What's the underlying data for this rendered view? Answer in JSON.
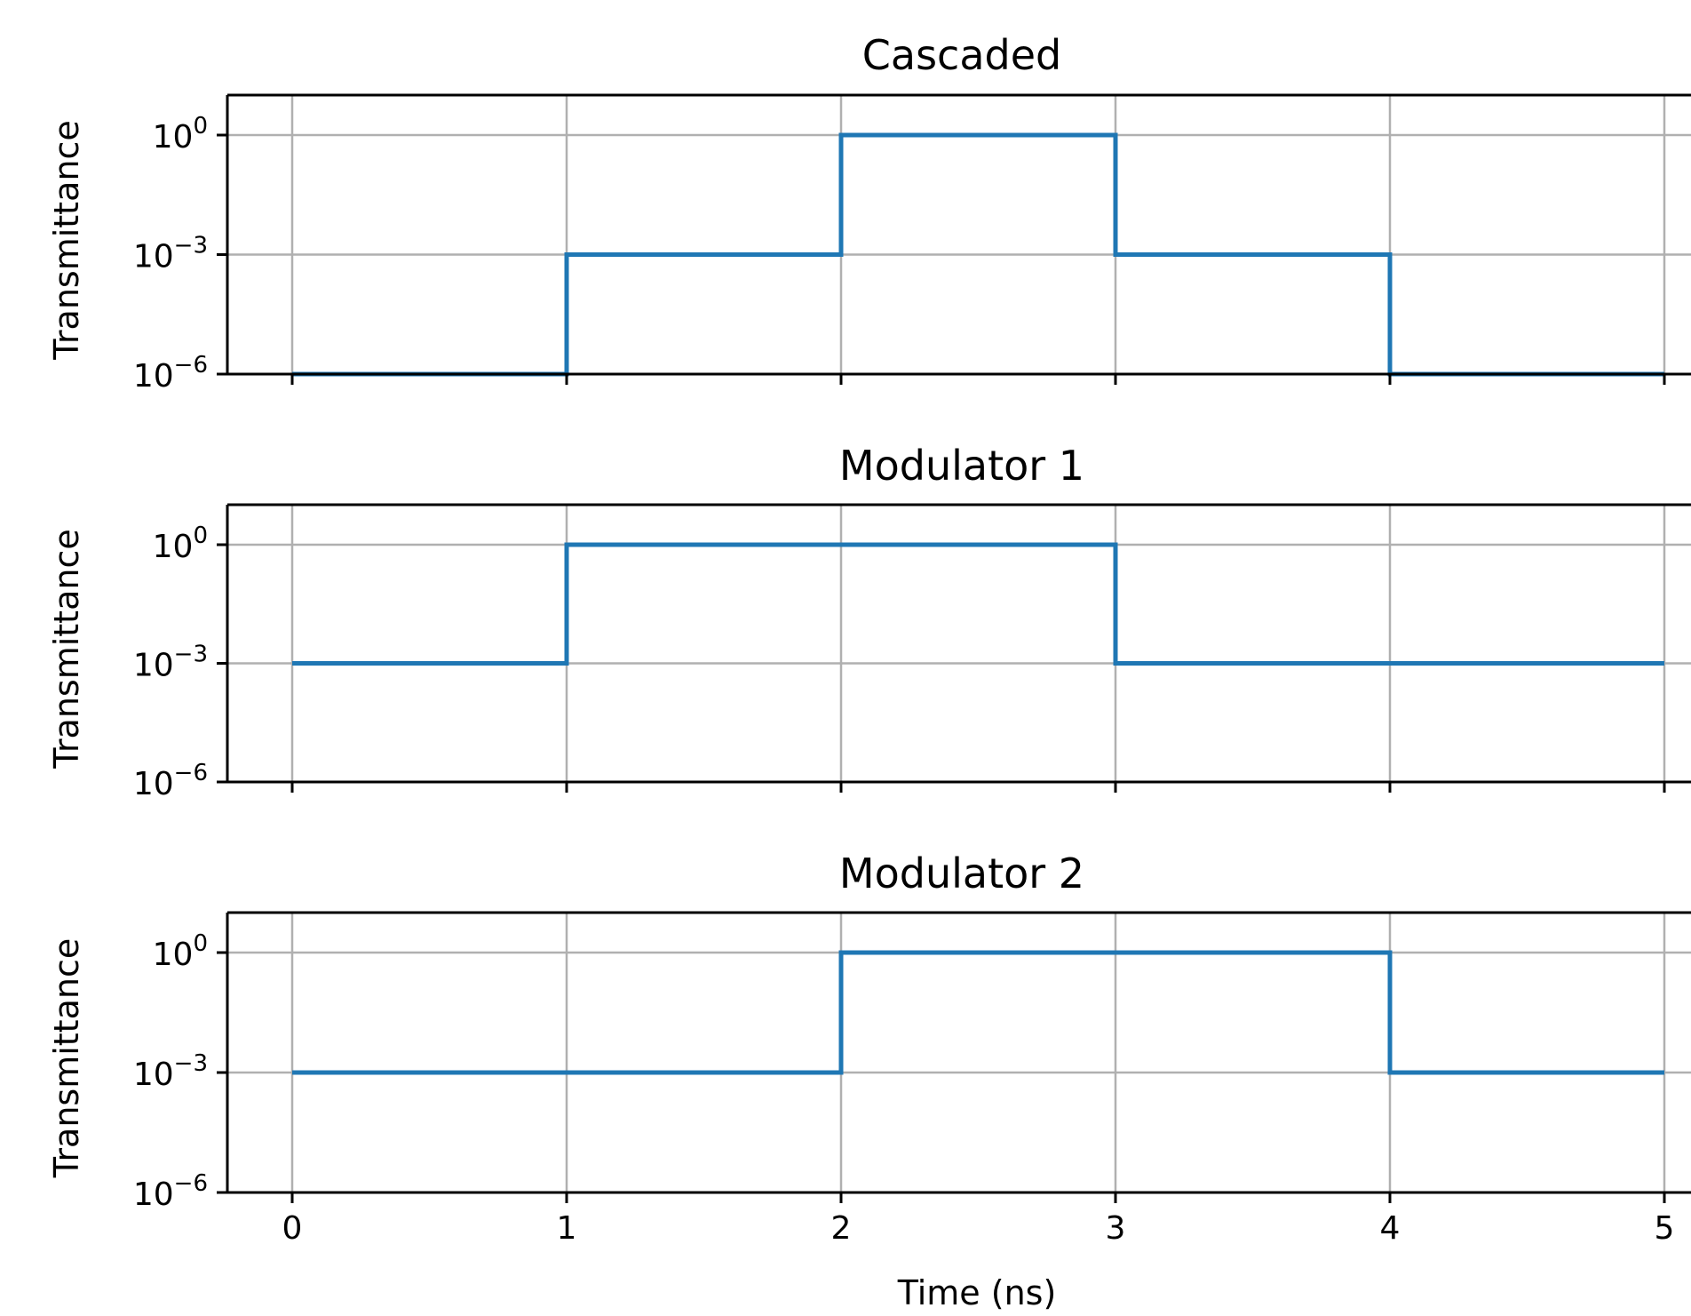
{
  "chart_data": [
    {
      "type": "line",
      "title": "Cascaded",
      "ylabel": "Transmittance",
      "xlabel": "",
      "yscale": "log",
      "xlim": [
        -0.25,
        5.1
      ],
      "ylim": [
        1e-06,
        10
      ],
      "grid": true,
      "xticks": [
        0,
        1,
        2,
        3,
        4,
        5
      ],
      "xtick_labels_visible": false,
      "yticks": [
        {
          "base": "10",
          "exp": "0",
          "value": 1
        },
        {
          "base": "10",
          "exp": "−3",
          "value": 0.001
        },
        {
          "base": "10",
          "exp": "−6",
          "value": 1e-06
        }
      ],
      "series": [
        {
          "color": "#1f77b4",
          "x": [
            0,
            1,
            1,
            2,
            2,
            3,
            3,
            4,
            4,
            5
          ],
          "y": [
            1e-06,
            1e-06,
            0.001,
            0.001,
            1,
            1,
            0.001,
            0.001,
            1e-06,
            1e-06
          ]
        }
      ]
    },
    {
      "type": "line",
      "title": "Modulator 1",
      "ylabel": "Transmittance",
      "xlabel": "",
      "yscale": "log",
      "xlim": [
        -0.25,
        5.1
      ],
      "ylim": [
        1e-06,
        10
      ],
      "grid": true,
      "xticks": [
        0,
        1,
        2,
        3,
        4,
        5
      ],
      "xtick_labels_visible": false,
      "yticks": [
        {
          "base": "10",
          "exp": "0",
          "value": 1
        },
        {
          "base": "10",
          "exp": "−3",
          "value": 0.001
        },
        {
          "base": "10",
          "exp": "−6",
          "value": 1e-06
        }
      ],
      "series": [
        {
          "color": "#1f77b4",
          "x": [
            0,
            1,
            1,
            3,
            3,
            5
          ],
          "y": [
            0.001,
            0.001,
            1,
            1,
            0.001,
            0.001
          ]
        }
      ]
    },
    {
      "type": "line",
      "title": "Modulator 2",
      "ylabel": "Transmittance",
      "xlabel": "Time (ns)",
      "yscale": "log",
      "xlim": [
        -0.25,
        5.1
      ],
      "ylim": [
        1e-06,
        10
      ],
      "grid": true,
      "xticks": [
        0,
        1,
        2,
        3,
        4,
        5
      ],
      "xtick_labels_visible": true,
      "yticks": [
        {
          "base": "10",
          "exp": "0",
          "value": 1
        },
        {
          "base": "10",
          "exp": "−3",
          "value": 0.001
        },
        {
          "base": "10",
          "exp": "−6",
          "value": 1e-06
        }
      ],
      "series": [
        {
          "color": "#1f77b4",
          "x": [
            0,
            2,
            2,
            4,
            4,
            5
          ],
          "y": [
            0.001,
            0.001,
            1,
            1,
            0.001,
            0.001
          ]
        }
      ]
    }
  ]
}
